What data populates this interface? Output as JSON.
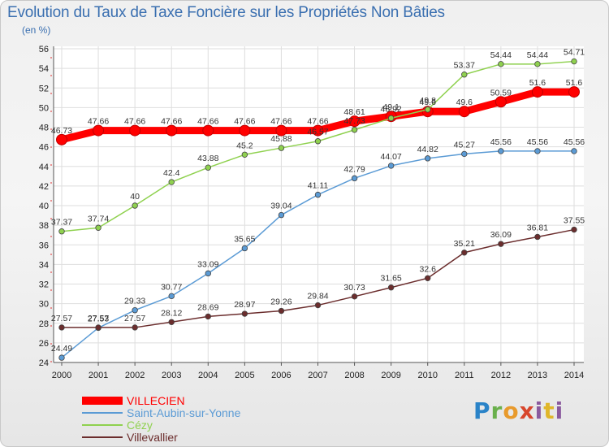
{
  "header": {
    "title": "Evolution du Taux de Taxe Foncière sur les Propriétés Non Bâties",
    "subtitle": "(en %)"
  },
  "logo": {
    "text": "Proxiti"
  },
  "chart_data": {
    "type": "line",
    "title": "Evolution du Taux de Taxe Foncière sur les Propriétés Non Bâties",
    "ylabel": "(en %)",
    "xlabel": "",
    "x": [
      "2000",
      "2001",
      "2002",
      "2003",
      "2004",
      "2005",
      "2006",
      "2007",
      "2008",
      "2009",
      "2010",
      "2011",
      "2012",
      "2013",
      "2014"
    ],
    "ylim": [
      24,
      56
    ],
    "yticks": [
      24,
      26,
      28,
      30,
      32,
      34,
      36,
      38,
      40,
      42,
      44,
      46,
      48,
      50,
      52,
      54,
      56
    ],
    "grid": true,
    "legend": "bottom-left",
    "series": [
      {
        "name": "VILLECIEN",
        "color": "#ff0000",
        "values": [
          46.73,
          47.66,
          47.66,
          47.66,
          47.66,
          47.66,
          47.66,
          47.66,
          48.61,
          49.1,
          49.6,
          49.6,
          50.59,
          51.6,
          51.6
        ],
        "labels": [
          "46.73",
          "47.66",
          "47.66",
          "47.66",
          "47.66",
          "47.66",
          "47.66",
          "47.66",
          "48.61",
          "49.1",
          "49.6",
          "49.6",
          "50.59",
          "51.6",
          "51.6"
        ]
      },
      {
        "name": "Saint-Aubin-sur-Yonne",
        "color": "#5b9bd5",
        "values": [
          24.49,
          27.53,
          29.33,
          30.77,
          33.09,
          35.65,
          39.04,
          41.11,
          42.79,
          44.07,
          44.82,
          45.27,
          45.56,
          45.56,
          45.56
        ],
        "labels": [
          "24.49",
          "27.53",
          "29.33",
          "30.77",
          "33.09",
          "35.65",
          "39.04",
          "41.11",
          "42.79",
          "44.07",
          "44.82",
          "45.27",
          "45.56",
          "45.56",
          "45.56"
        ]
      },
      {
        "name": "Cézy",
        "color": "#8fd14f",
        "values": [
          37.37,
          37.74,
          40,
          42.4,
          43.88,
          45.2,
          45.88,
          46.57,
          47.73,
          48.92,
          49.8,
          53.37,
          54.44,
          54.44,
          54.71
        ],
        "labels": [
          "37.37",
          "37.74",
          "40",
          "42.4",
          "43.88",
          "45.2",
          "45.88",
          "46.57",
          "47.73",
          "48.92",
          "49.8",
          "53.37",
          "54.44",
          "54.44",
          "54.71"
        ]
      },
      {
        "name": "Villevallier",
        "color": "#6b2d2d",
        "values": [
          27.57,
          27.57,
          27.57,
          28.12,
          28.69,
          28.97,
          29.26,
          29.84,
          30.73,
          31.65,
          32.6,
          35.21,
          36.09,
          36.81,
          37.55
        ],
        "labels": [
          "27.57",
          "27.57",
          "27.57",
          "28.12",
          "28.69",
          "28.97",
          "29.26",
          "29.84",
          "30.73",
          "31.65",
          "32.6",
          "35.21",
          "36.09",
          "36.81",
          "37.55"
        ]
      }
    ]
  }
}
